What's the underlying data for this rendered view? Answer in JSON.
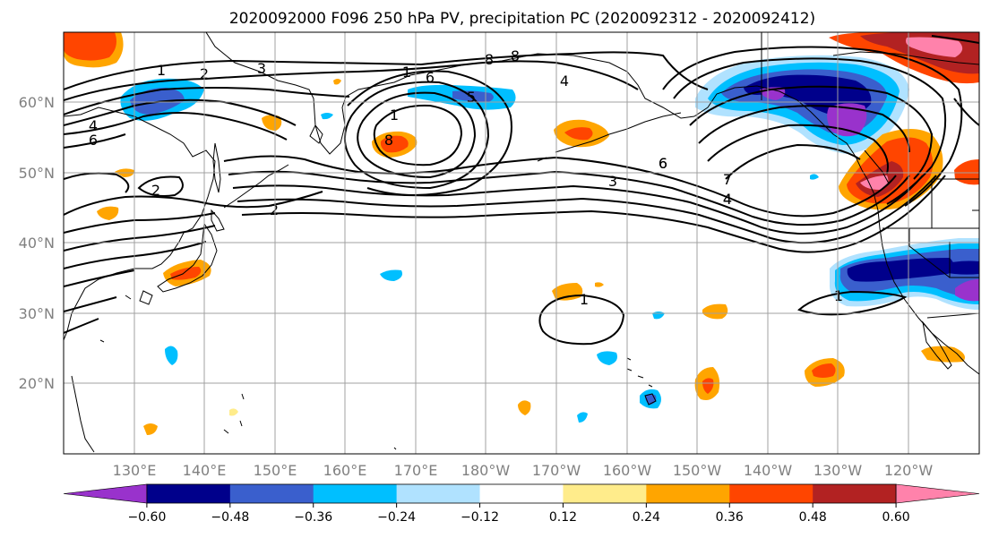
{
  "title": "2020092000 F096 250 hPa PV, precipitation PC (2020092312 - 2020092412)",
  "lat_labels": [
    "60°N",
    "50°N",
    "40°N",
    "30°N",
    "20°N"
  ],
  "lon_labels": [
    "130°E",
    "140°E",
    "150°E",
    "160°E",
    "170°E",
    "180°W",
    "170°W",
    "160°W",
    "150°W",
    "140°W",
    "130°W",
    "120°W"
  ],
  "colorbar": {
    "colors": [
      "#9932cc",
      "#00008b",
      "#3a5fcd",
      "#00bfff",
      "#b0e2ff",
      "#ffffff",
      "#ffec8b",
      "#ffa500",
      "#ff4500",
      "#b22222",
      "#ff82ab"
    ],
    "tick_labels": [
      "−0.60",
      "−0.48",
      "−0.36",
      "−0.24",
      "−0.12",
      "0.12",
      "0.24",
      "0.36",
      "0.48",
      "0.60"
    ]
  },
  "contour_labels": [
    "1",
    "2",
    "3",
    "4",
    "6",
    "8",
    "1",
    "6",
    "5",
    "4",
    "8",
    "1",
    "8",
    "4",
    "6",
    "2",
    "2",
    "3",
    "6",
    "7",
    "4",
    "1",
    "1"
  ]
}
